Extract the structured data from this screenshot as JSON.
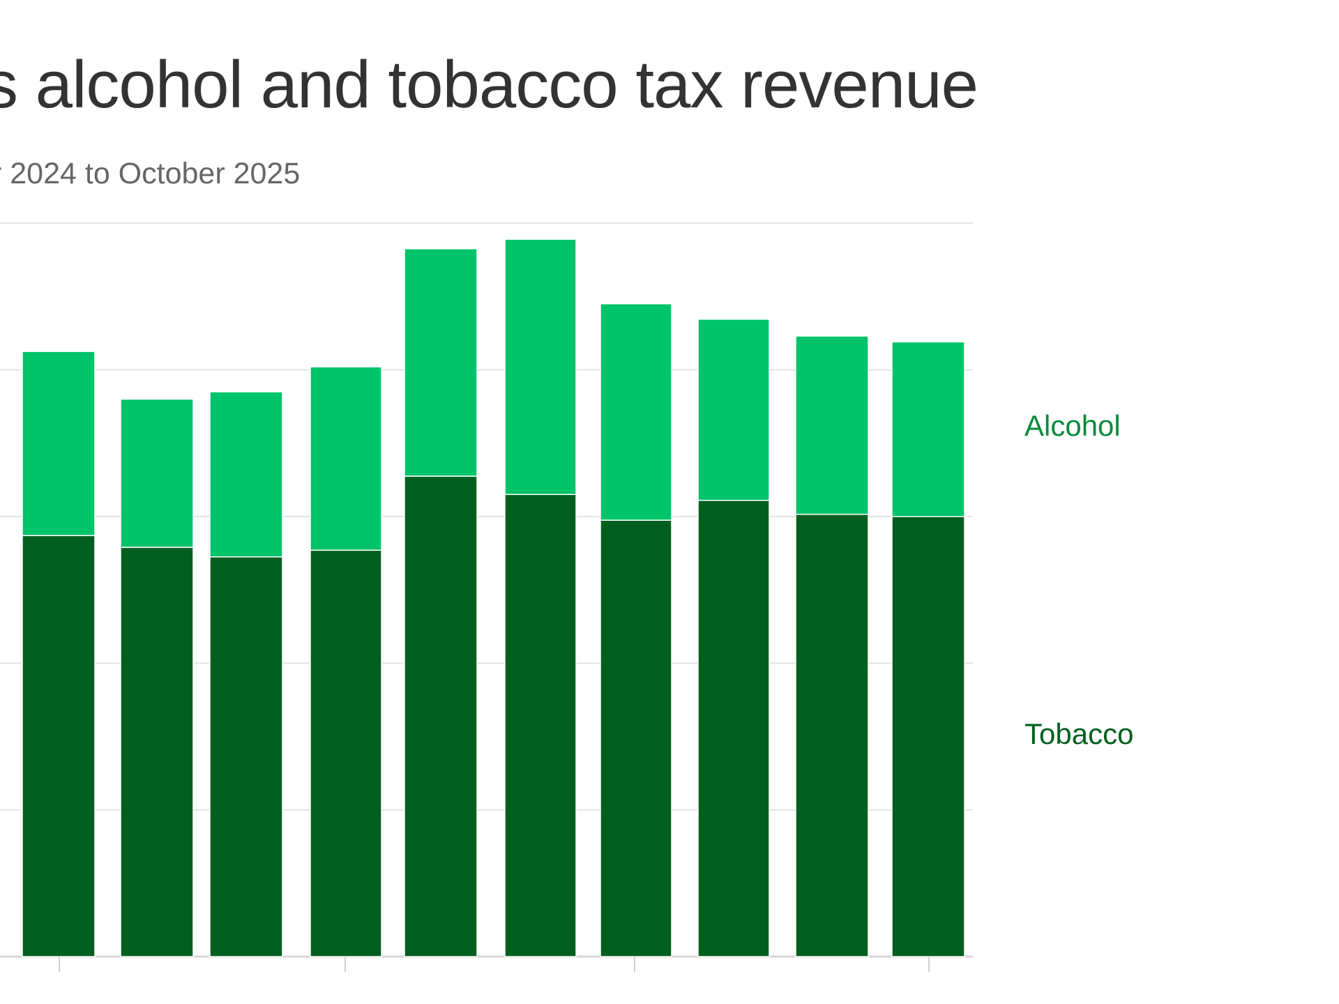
{
  "chart_data": {
    "type": "bar",
    "stacked": true,
    "title": "s alcohol and tobacco tax revenue",
    "subtitle": "r 2024 to October 2025",
    "xlabel": "",
    "ylabel": "",
    "ylim": [
      0,
      100
    ],
    "grid": true,
    "legend": "right",
    "categories": [],
    "x": [
      1,
      2,
      3,
      4,
      5,
      6,
      7,
      8,
      9,
      10
    ],
    "series": [
      {
        "name": "Tobacco",
        "color": "#005f1e",
        "values": [
          57.4,
          55.8,
          54.5,
          55.4,
          65.5,
          63.0,
          59.5,
          62.2,
          60.3,
          60.0
        ]
      },
      {
        "name": "Alcohol",
        "color": "#00c36a",
        "values": [
          25.1,
          20.2,
          22.5,
          25.0,
          31.0,
          34.8,
          29.5,
          24.7,
          24.3,
          23.8
        ]
      }
    ],
    "label_colors": {
      "Alcohol": "#0a8a3a",
      "Tobacco": "#005f1e"
    }
  }
}
